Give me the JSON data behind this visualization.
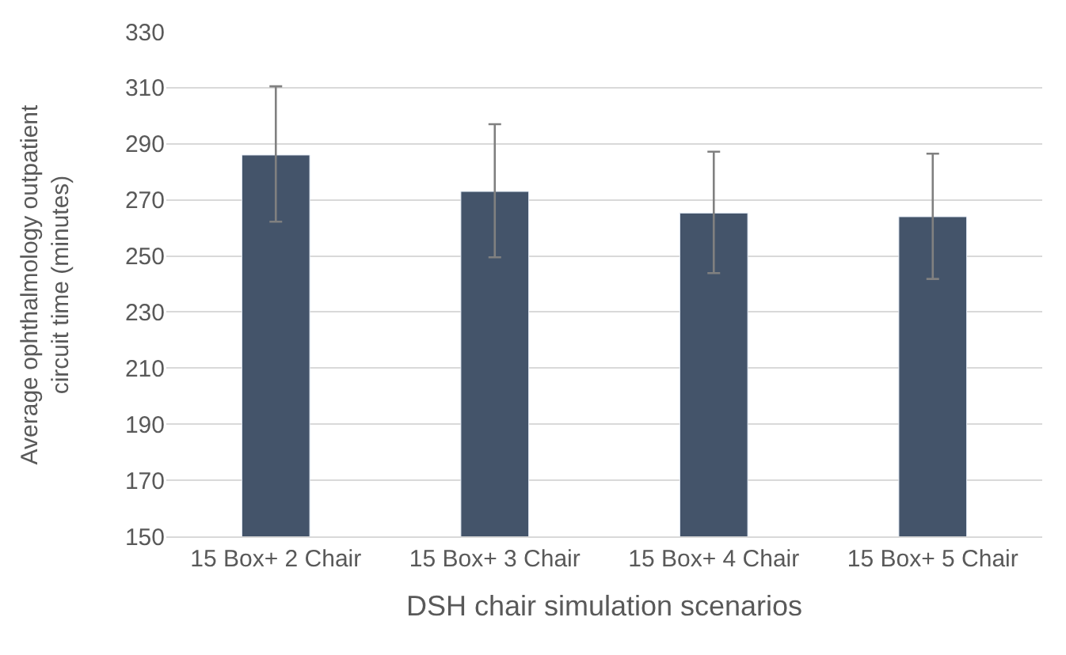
{
  "chart_data": {
    "type": "bar",
    "xlabel": "DSH chair simulation scenarios",
    "ylabel": "Average ophthalmology outpatient circuit time (minutes)",
    "categories": [
      "15 Box+ 2 Chair",
      "15 Box+ 3 Chair",
      "15 Box+ 4 Chair",
      "15 Box+ 5 Chair"
    ],
    "values": [
      286,
      273,
      265.3,
      264
    ],
    "errors": [
      [
        262.2,
        310.5
      ],
      [
        249.5,
        297
      ],
      [
        243.9,
        287.2
      ],
      [
        241.8,
        286.5
      ]
    ],
    "color": "#44546a",
    "ylim": [
      150,
      330
    ],
    "yticks": [
      150,
      170,
      190,
      210,
      230,
      250,
      270,
      290,
      310,
      330
    ],
    "grid": "y"
  }
}
